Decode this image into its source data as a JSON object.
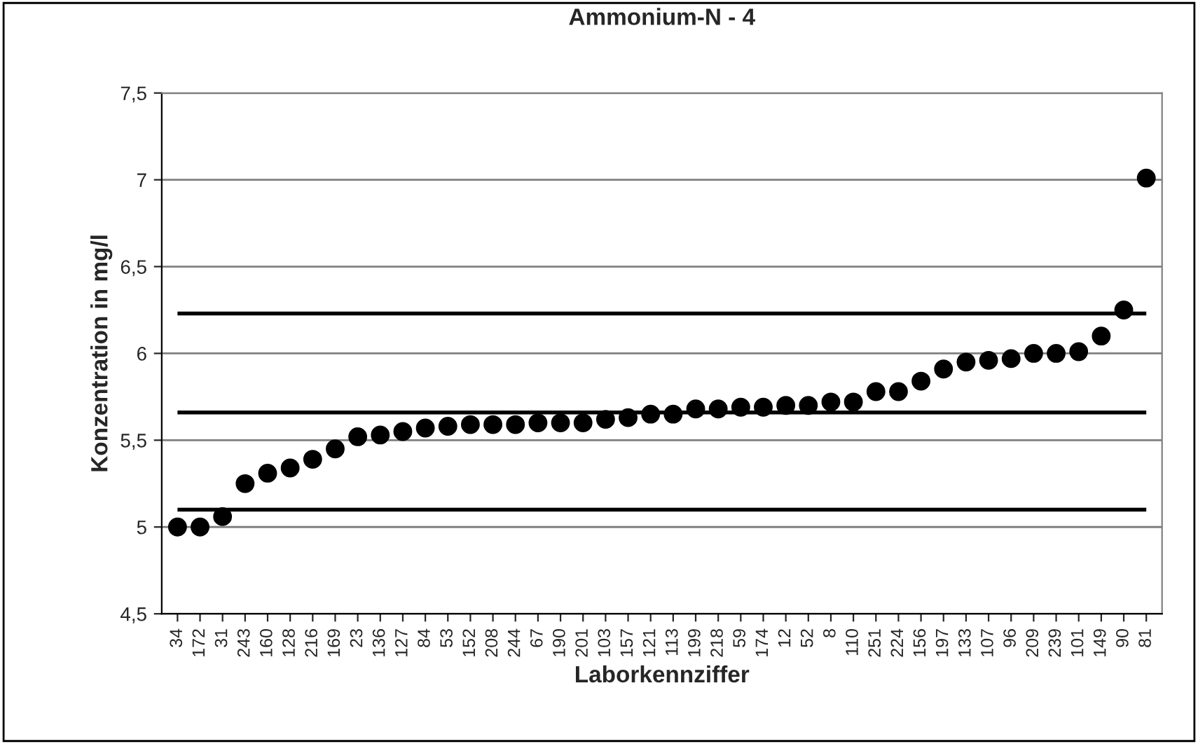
{
  "chart_data": {
    "type": "scatter",
    "title": "Ammonium-N - 4",
    "xlabel": "Laborkennziffer",
    "ylabel": "Konzentration in mg/l",
    "categories": [
      "34",
      "172",
      "31",
      "243",
      "160",
      "128",
      "216",
      "169",
      "23",
      "136",
      "127",
      "84",
      "53",
      "152",
      "208",
      "244",
      "67",
      "190",
      "201",
      "103",
      "157",
      "121",
      "113",
      "199",
      "218",
      "59",
      "174",
      "12",
      "52",
      "8",
      "110",
      "251",
      "224",
      "156",
      "197",
      "133",
      "107",
      "96",
      "209",
      "239",
      "101",
      "149",
      "90",
      "81"
    ],
    "series": [
      {
        "color": "#000000",
        "values": [
          5.0,
          5.0,
          5.06,
          5.25,
          5.31,
          5.34,
          5.39,
          5.45,
          5.52,
          5.53,
          5.55,
          5.57,
          5.58,
          5.59,
          5.59,
          5.59,
          5.6,
          5.6,
          5.6,
          5.62,
          5.63,
          5.65,
          5.65,
          5.68,
          5.68,
          5.69,
          5.69,
          5.7,
          5.7,
          5.72,
          5.72,
          5.78,
          5.78,
          5.84,
          5.91,
          5.95,
          5.96,
          5.97,
          6.0,
          6.0,
          6.01,
          6.1,
          6.25,
          7.01
        ]
      }
    ],
    "ylim": [
      4.5,
      7.5
    ],
    "yticks": [
      {
        "value": 4.5,
        "label": "4,5"
      },
      5,
      {
        "value": 5.5,
        "label": "5,5"
      },
      6,
      {
        "value": 6.5,
        "label": "6,5"
      },
      7,
      {
        "value": 7.5,
        "label": "7,5"
      }
    ],
    "ref_lines": [
      {
        "axis": "y",
        "value": 6.23,
        "color": "#000000"
      },
      {
        "axis": "y",
        "value": 5.66,
        "color": "#000000"
      },
      {
        "axis": "y",
        "value": 5.1,
        "color": "#000000"
      }
    ],
    "grid": "y",
    "marker": "circle"
  }
}
